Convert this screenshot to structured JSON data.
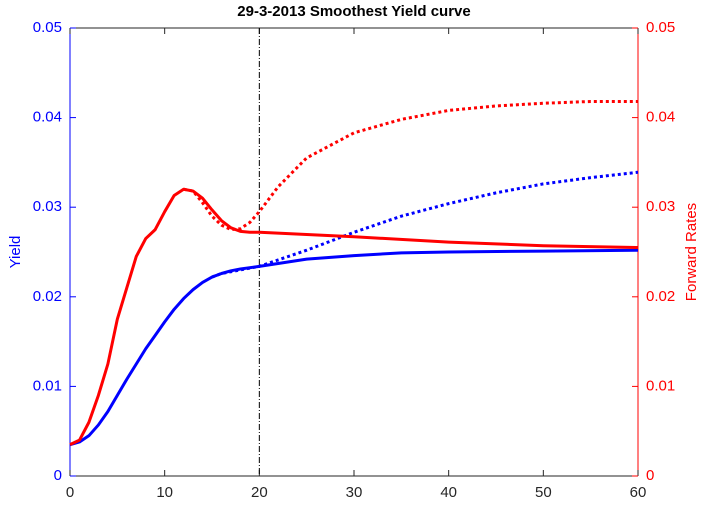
{
  "chart_data": {
    "type": "line",
    "title": "29-3-2013    Smoothest Yield curve",
    "ylabel": "Yield",
    "y2label": "Forward Rates",
    "xlim": [
      0,
      60
    ],
    "xticks": [
      0,
      10,
      20,
      30,
      40,
      50,
      60
    ],
    "ylim": [
      0,
      0.05
    ],
    "yticks": [
      0,
      0.01,
      0.02,
      0.03,
      0.04,
      0.05
    ],
    "y2lim": [
      0,
      0.05
    ],
    "y2ticks": [
      0,
      0.01,
      0.02,
      0.03,
      0.04,
      0.05
    ],
    "ycolor": "#0000ff",
    "y2color": "#ff0000",
    "vline": 20,
    "series": [
      {
        "color": "#0000ff",
        "style": "solid",
        "axis": "y",
        "x": [
          0,
          1,
          2,
          3,
          4,
          5,
          6,
          7,
          8,
          9,
          10,
          11,
          12,
          13,
          14,
          15,
          16,
          17,
          18,
          20,
          25,
          30,
          35,
          40,
          50,
          60
        ],
        "values": [
          0.0035,
          0.0038,
          0.0045,
          0.0057,
          0.0072,
          0.009,
          0.0108,
          0.0125,
          0.0142,
          0.0157,
          0.0172,
          0.0186,
          0.0198,
          0.0208,
          0.0216,
          0.0222,
          0.0226,
          0.0229,
          0.0231,
          0.0234,
          0.0242,
          0.0246,
          0.0249,
          0.025,
          0.0251,
          0.0252
        ]
      },
      {
        "color": "#0000ff",
        "style": "dotted",
        "axis": "y",
        "x": [
          15,
          16,
          20,
          25,
          30,
          35,
          40,
          45,
          50,
          55,
          60
        ],
        "values": [
          0.0222,
          0.0226,
          0.0234,
          0.0252,
          0.0272,
          0.029,
          0.0304,
          0.0316,
          0.0326,
          0.0333,
          0.0339
        ]
      },
      {
        "color": "#ff0000",
        "style": "solid",
        "axis": "y2",
        "x": [
          0,
          1,
          2,
          3,
          4,
          5,
          6,
          7,
          8,
          9,
          10,
          11,
          12,
          13,
          14,
          15,
          16,
          17,
          18,
          19,
          20,
          30,
          40,
          50,
          60
        ],
        "values": [
          0.0035,
          0.004,
          0.006,
          0.009,
          0.0125,
          0.0175,
          0.021,
          0.0245,
          0.0265,
          0.0275,
          0.0295,
          0.0313,
          0.032,
          0.0318,
          0.031,
          0.0297,
          0.0285,
          0.0277,
          0.0273,
          0.0272,
          0.0272,
          0.0267,
          0.0261,
          0.0257,
          0.0255
        ]
      },
      {
        "color": "#ff0000",
        "style": "dotted",
        "axis": "y2",
        "x": [
          12,
          13,
          14,
          15,
          16,
          17,
          18,
          19,
          20,
          22,
          25,
          30,
          35,
          40,
          45,
          50,
          55,
          60
        ],
        "values": [
          0.032,
          0.0318,
          0.0305,
          0.029,
          0.028,
          0.0275,
          0.0276,
          0.0283,
          0.0295,
          0.0323,
          0.0355,
          0.0383,
          0.0398,
          0.0408,
          0.0413,
          0.0416,
          0.0418,
          0.0418
        ]
      }
    ]
  }
}
